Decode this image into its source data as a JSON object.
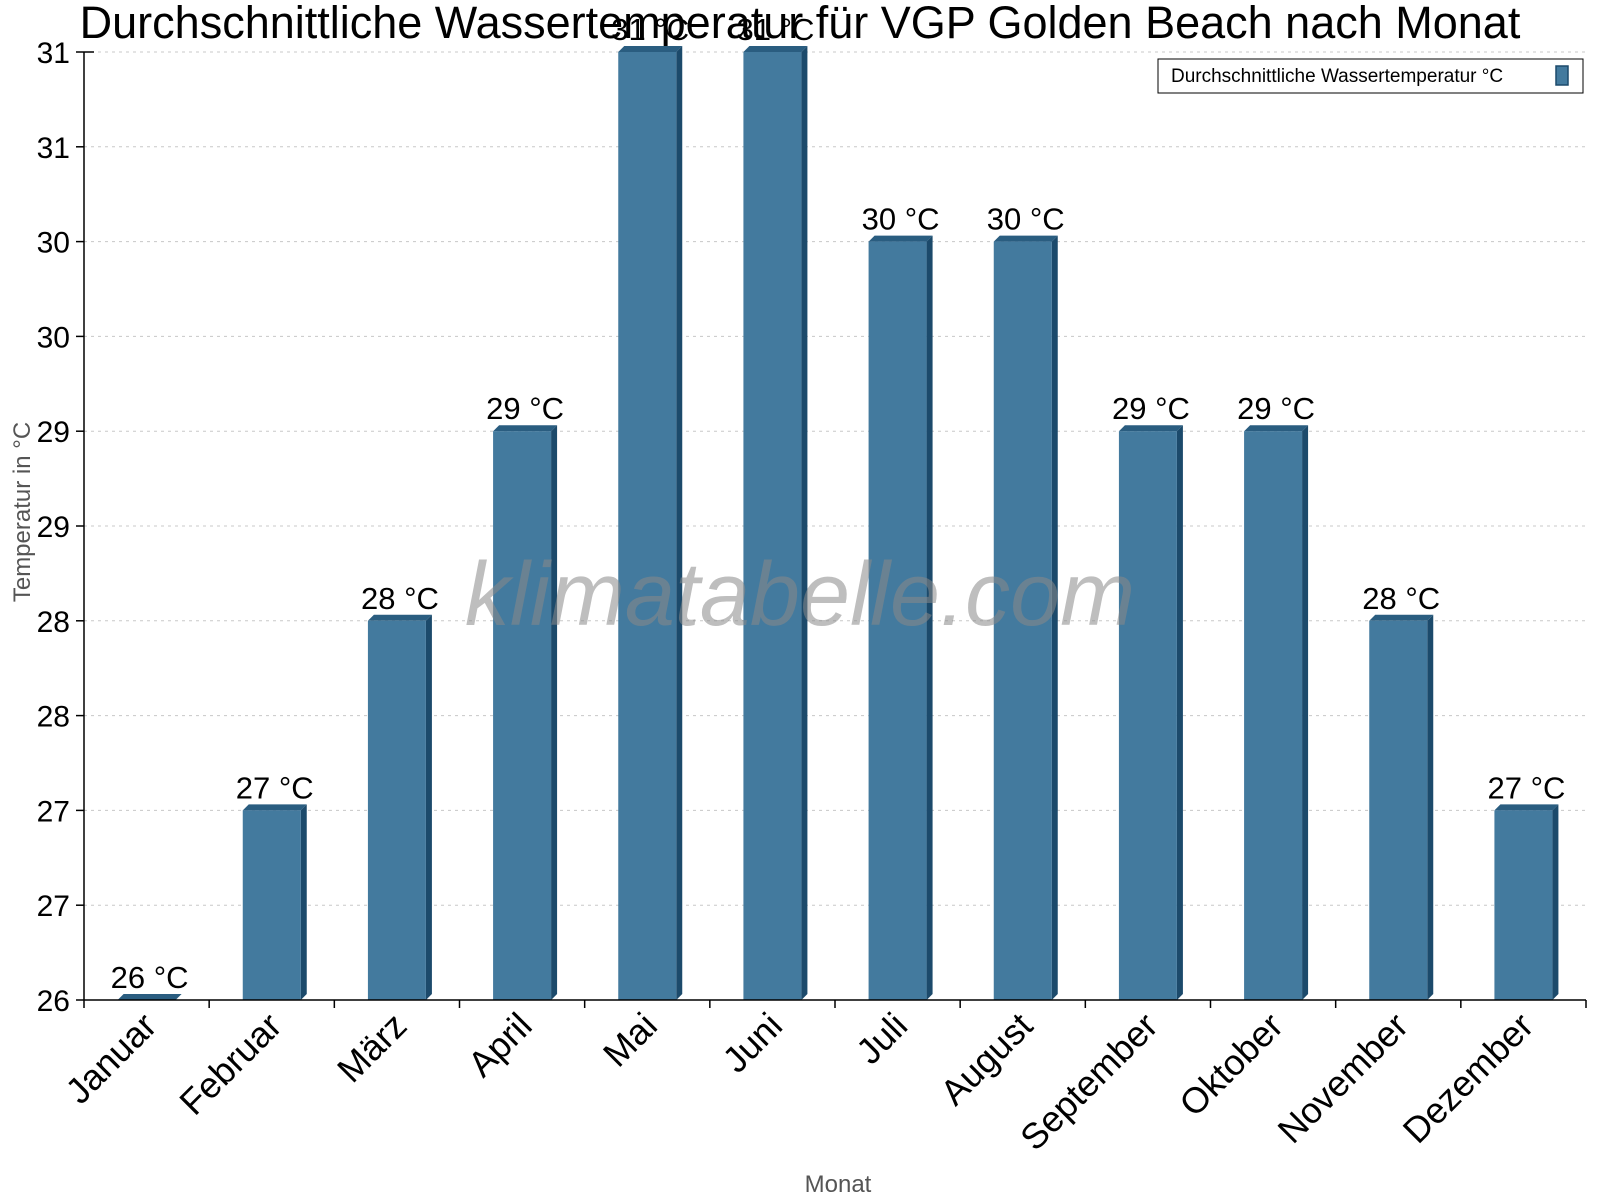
{
  "chart_data": {
    "type": "bar",
    "title": "Durchschnittliche Wassertemperatur für VGP Golden Beach nach Monat",
    "xlabel": "Monat",
    "ylabel": "Temperatur in °C",
    "categories": [
      "Januar",
      "Februar",
      "März",
      "April",
      "Mai",
      "Juni",
      "Juli",
      "August",
      "September",
      "Oktober",
      "November",
      "Dezember"
    ],
    "series": [
      {
        "name": "Durchschnittliche Wassertemperatur °C",
        "values": [
          26,
          27,
          28,
          29,
          31,
          31,
          30,
          30,
          29,
          29,
          28,
          27
        ],
        "data_labels": [
          "26 °C",
          "27 °C",
          "28 °C",
          "29 °C",
          "31 °C",
          "31 °C",
          "30 °C",
          "30 °C",
          "29 °C",
          "29 °C",
          "28 °C",
          "27 °C"
        ]
      }
    ],
    "ylim": [
      26,
      31
    ],
    "yticks": [
      26,
      26.5,
      27,
      27.5,
      28,
      28.5,
      29,
      29.5,
      30,
      30.5,
      31
    ],
    "ytick_labels": [
      "26",
      "27",
      "27",
      "28",
      "28",
      "29",
      "29",
      "30",
      "30",
      "31",
      "31"
    ],
    "grid": true,
    "legend_position": "top-right",
    "colors": {
      "bar": "#437a9e",
      "bar_side": "#1c4a6b",
      "bar_top": "#2a5d80"
    }
  },
  "watermark": "klimatabelle.com"
}
